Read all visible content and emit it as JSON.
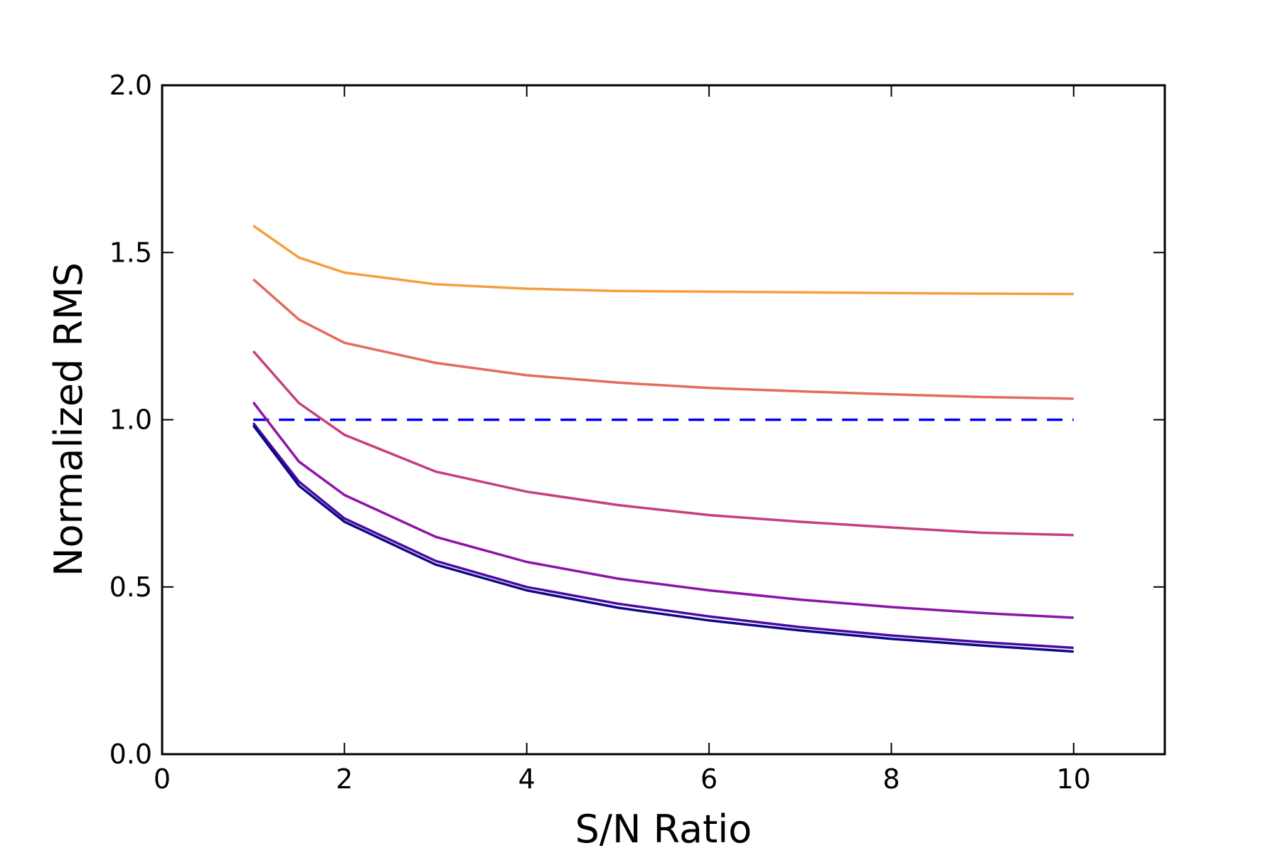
{
  "chart_data": {
    "type": "line",
    "title": "",
    "xlabel": "S/N Ratio",
    "ylabel": "Normalized RMS",
    "xlim": [
      0,
      11
    ],
    "ylim": [
      0.0,
      2.0
    ],
    "xticks": [
      0,
      2,
      4,
      6,
      8,
      10
    ],
    "xtick_labels": [
      "0",
      "2",
      "4",
      "6",
      "8",
      "10"
    ],
    "yticks": [
      0.0,
      0.5,
      1.0,
      1.5,
      2.0
    ],
    "ytick_labels": [
      "0.0",
      "0.5",
      "1.0",
      "1.5",
      "2.0"
    ],
    "grid": false,
    "legend": "none",
    "x": [
      1,
      1.5,
      2,
      3,
      4,
      5,
      6,
      7,
      8,
      9,
      10
    ],
    "series": [
      {
        "color": "#f59e3b",
        "values": [
          1.58,
          1.485,
          1.44,
          1.405,
          1.392,
          1.385,
          1.383,
          1.381,
          1.379,
          1.377,
          1.376
        ]
      },
      {
        "color": "#e56b5d",
        "values": [
          1.42,
          1.3,
          1.23,
          1.17,
          1.133,
          1.111,
          1.095,
          1.085,
          1.076,
          1.068,
          1.063
        ]
      },
      {
        "color": "#c73e7f",
        "values": [
          1.205,
          1.05,
          0.955,
          0.845,
          0.785,
          0.745,
          0.715,
          0.695,
          0.678,
          0.662,
          0.655
        ]
      },
      {
        "color": "#8f13a8",
        "values": [
          1.052,
          0.875,
          0.775,
          0.65,
          0.575,
          0.525,
          0.49,
          0.462,
          0.44,
          0.422,
          0.408
        ]
      },
      {
        "color": "#4a0aa0",
        "values": [
          0.99,
          0.815,
          0.705,
          0.578,
          0.5,
          0.45,
          0.412,
          0.38,
          0.355,
          0.335,
          0.318
        ]
      },
      {
        "color": "#0d0887",
        "values": [
          0.983,
          0.803,
          0.695,
          0.567,
          0.49,
          0.438,
          0.4,
          0.37,
          0.345,
          0.325,
          0.307
        ]
      }
    ],
    "reference_line": {
      "y": 1.0,
      "x_range": [
        1,
        10
      ],
      "style": "dashed",
      "color": "#0000ee"
    }
  }
}
